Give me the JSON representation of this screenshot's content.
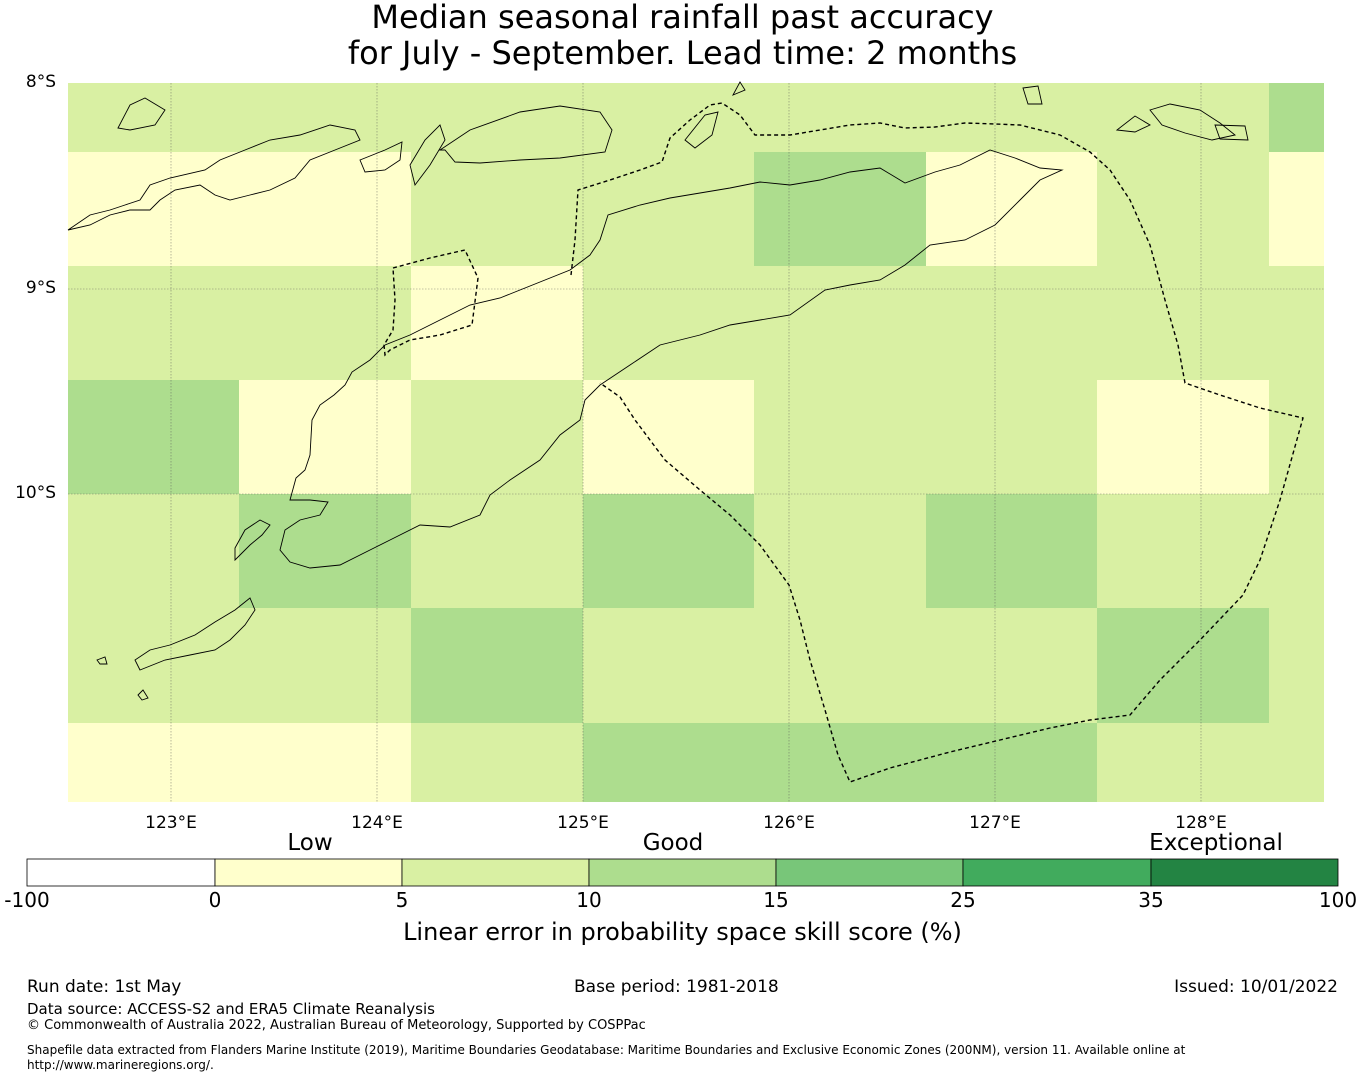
{
  "title": {
    "line1": "Median seasonal rainfall past accuracy",
    "line2": "for July - September. Lead time: 2 months"
  },
  "map": {
    "lat_labels": [
      "8°S",
      "9°S",
      "10°S"
    ],
    "lon_labels": [
      "123°E",
      "124°E",
      "125°E",
      "126°E",
      "127°E",
      "128°E"
    ],
    "colors": {
      "negative": "#ffffff",
      "0_5": "#ffffcc",
      "5_10": "#d9f0a3",
      "10_15": "#addd8e",
      "15_25": "#78c679",
      "25_35": "#41ab5d",
      "35_100": "#238443"
    },
    "grid_rows": [
      [
        "5_10",
        "5_10",
        "5_10",
        "5_10",
        "5_10",
        "5_10",
        "5_10",
        "10_15"
      ],
      [
        "0_5",
        "0_5",
        "5_10",
        "5_10",
        "10_15",
        "0_5",
        "5_10",
        "0_5"
      ],
      [
        "5_10",
        "5_10",
        "0_5",
        "5_10",
        "5_10",
        "5_10",
        "5_10",
        "5_10"
      ],
      [
        "10_15",
        "0_5",
        "5_10",
        "0_5",
        "5_10",
        "5_10",
        "0_5",
        "5_10"
      ],
      [
        "5_10",
        "10_15",
        "5_10",
        "10_15",
        "5_10",
        "10_15",
        "5_10",
        "5_10"
      ],
      [
        "5_10",
        "5_10",
        "10_15",
        "5_10",
        "5_10",
        "5_10",
        "10_15",
        "5_10"
      ],
      [
        "0_5",
        "0_5",
        "5_10",
        "10_15",
        "10_15",
        "10_15",
        "5_10",
        "5_10"
      ]
    ]
  },
  "colorbar": {
    "categories": [
      "Low",
      "Good",
      "Exceptional"
    ],
    "ticks": [
      "-100",
      "0",
      "5",
      "10",
      "15",
      "25",
      "35",
      "100"
    ],
    "label": "Linear error in probability space skill score (%)"
  },
  "footer": {
    "run_date": "Run date: 1st May",
    "base_period": "Base period: 1981-2018",
    "issued": "Issued: 10/01/2022",
    "data_source": "Data source: ACCESS-S2 and ERA5 Climate Reanalysis",
    "copyright": "© Commonwealth of Australia 2022, Australian Bureau of Meteorology, Supported by COSPPac",
    "shapefile": "Shapefile data extracted from Flanders Marine Institute (2019), Maritime Boundaries Geodatabase: Maritime Boundaries and Exclusive Economic Zones (200NM), version 11. Available online at http://www.marineregions.org/."
  }
}
